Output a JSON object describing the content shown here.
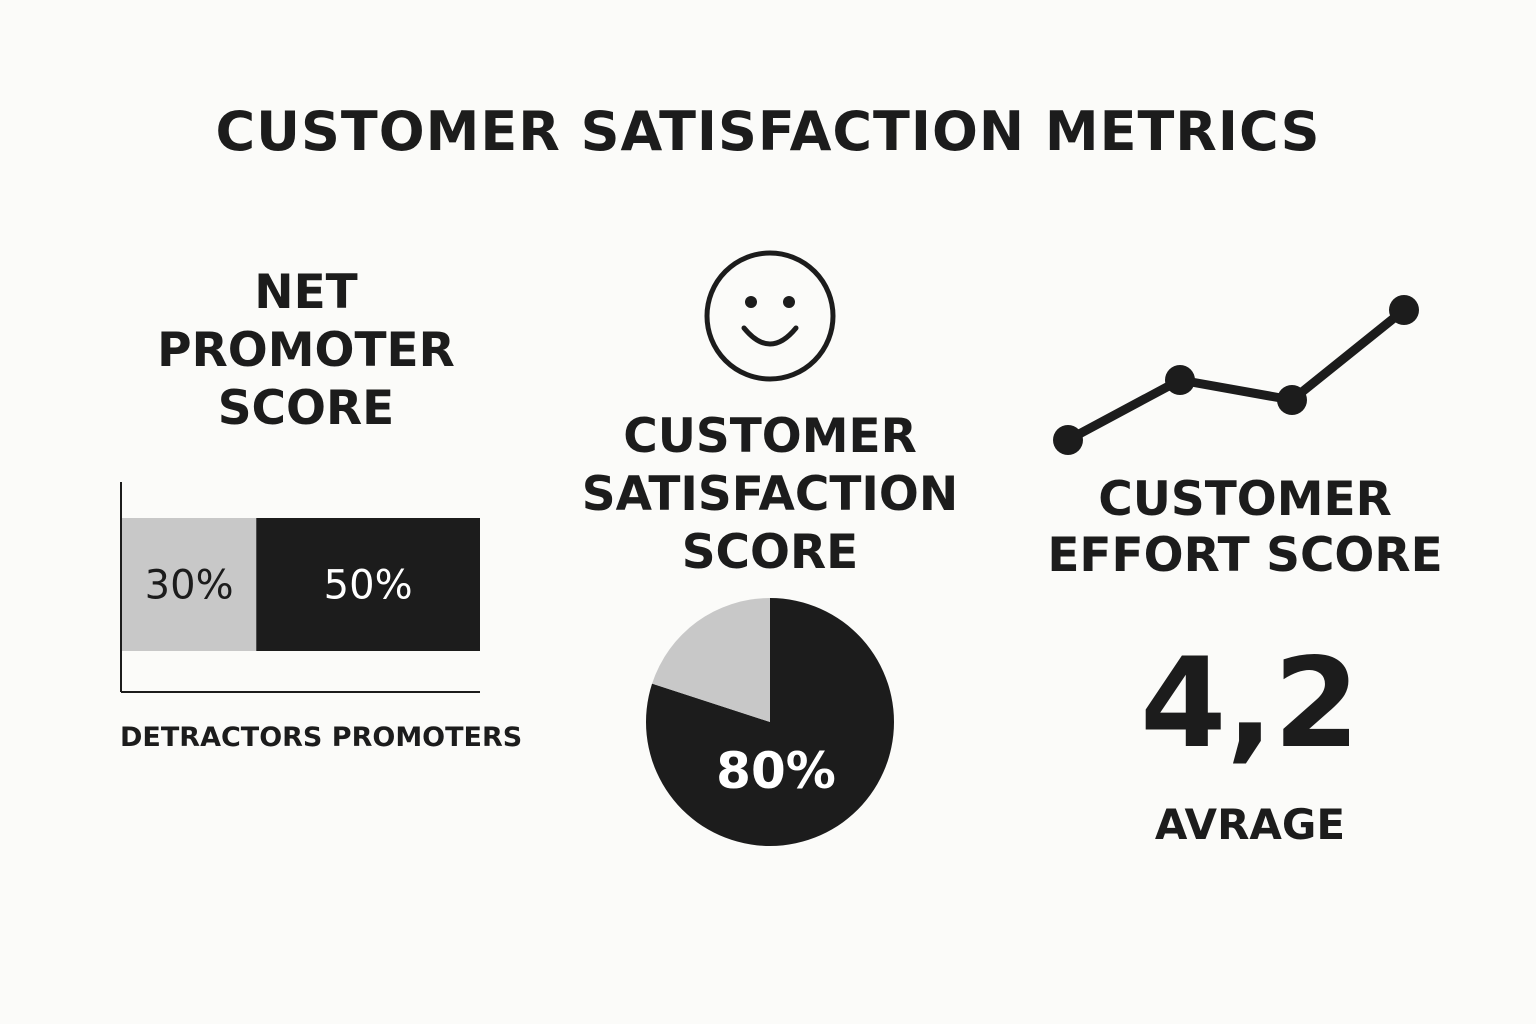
{
  "title": "CUSTOMER SATISFACTION METRICS",
  "nps": {
    "title": "NET\nPROMOTER\nSCORE",
    "axis_label": "DETRACTORS PROMOTERS"
  },
  "csat": {
    "title": "CUSTOMER\nSATISFACTION\nSCORE"
  },
  "ces": {
    "title": "CUSTOMER\nEFFORT SCORE",
    "value": "4,2",
    "label": "AVRAGE"
  },
  "icons": {
    "csat": "smiley-face-icon"
  },
  "colors": {
    "dark": "#1c1c1c",
    "light": "#c8c8c8",
    "background": "#fbfbf9"
  },
  "chart_data": [
    {
      "type": "bar",
      "orientation": "horizontal-stacked",
      "segments": [
        {
          "label": "30%",
          "value": 30,
          "color": "#c8c8c8"
        },
        {
          "label": "50%",
          "value": 50,
          "color": "#1c1c1c"
        }
      ],
      "xlabel": "DETRACTORS PROMOTERS"
    },
    {
      "type": "pie",
      "slices": [
        {
          "label": "80%",
          "value": 80,
          "color": "#1c1c1c"
        },
        {
          "label": "",
          "value": 20,
          "color": "#c8c8c8"
        }
      ]
    },
    {
      "type": "line",
      "x": [
        1,
        2,
        3,
        4
      ],
      "values": [
        1.0,
        2.2,
        1.8,
        3.6
      ],
      "axes_visible": false
    }
  ]
}
